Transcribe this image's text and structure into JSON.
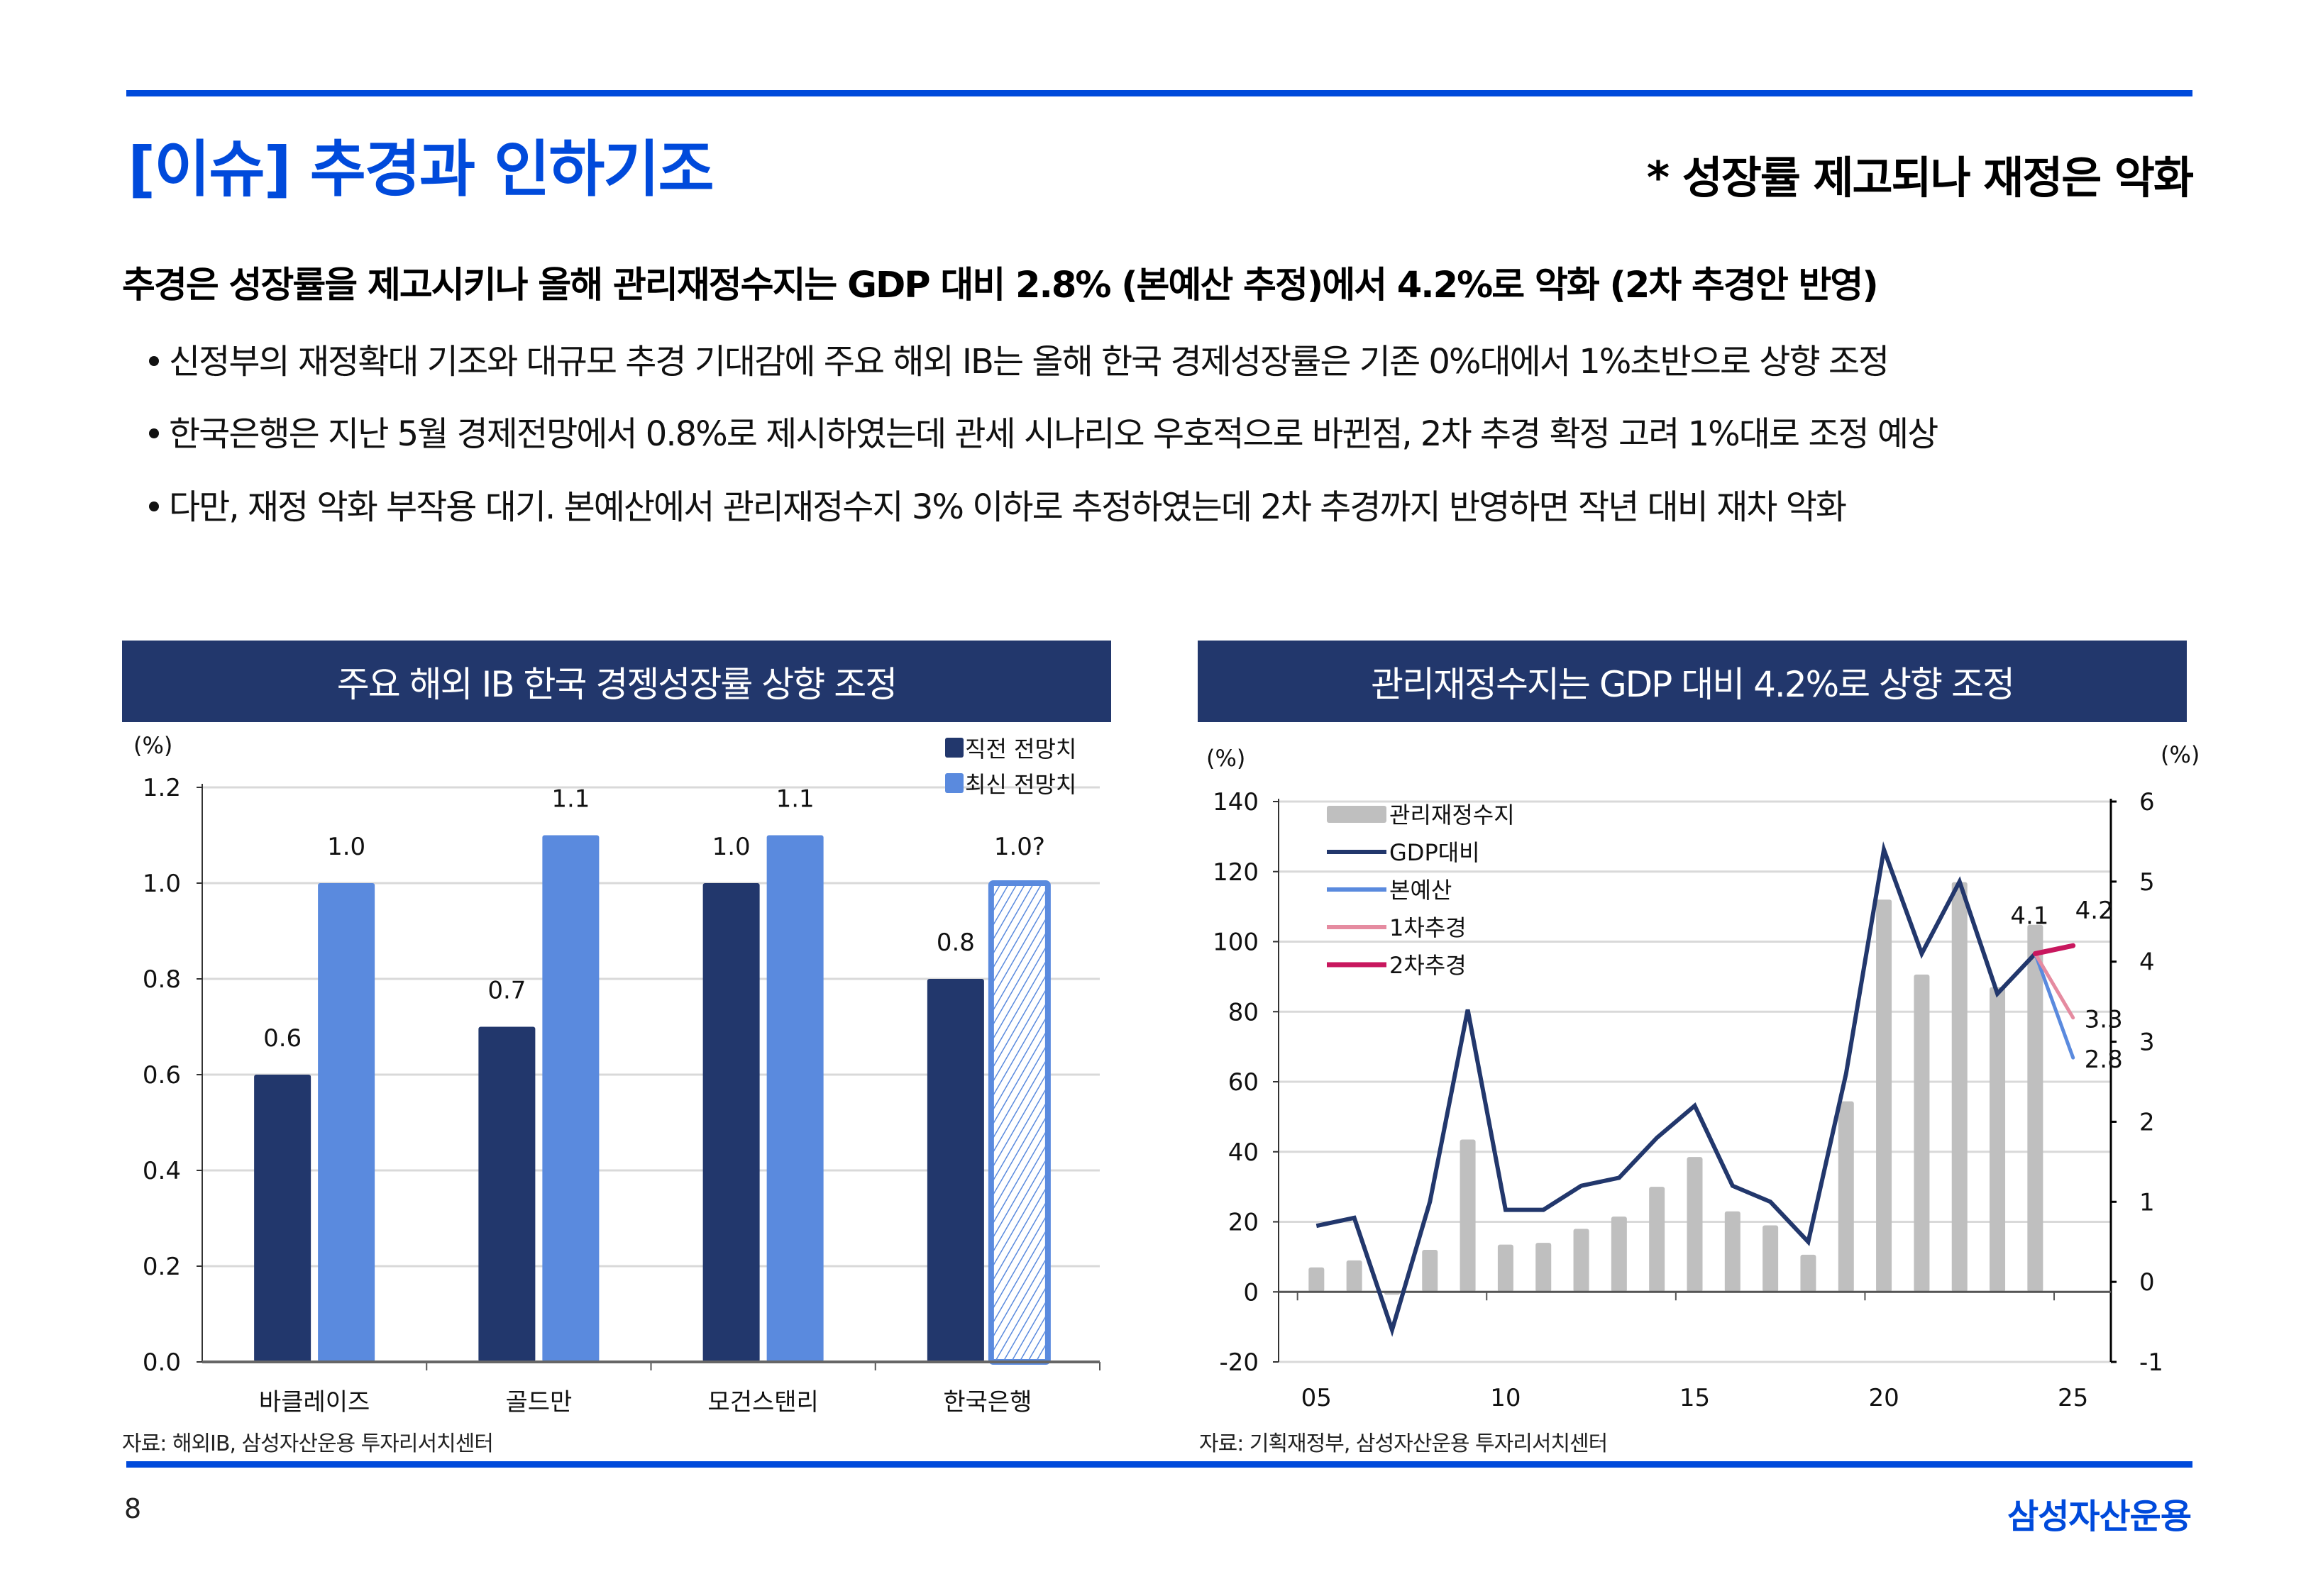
{
  "header": {
    "title": "[이슈] 추경과 인하기조",
    "subtitle": "* 성장률 제고되나 재정은 악화"
  },
  "headline": "추경은 성장률을 제고시키나 올해 관리재정수지는 GDP 대비 2.8% (본예산 추정)에서 4.2%로 악화 (2차 추경안 반영)",
  "bullets": [
    "신정부의 재정확대 기조와 대규모 추경 기대감에 주요 해외 IB는 올해 한국 경제성장률은 기존 0%대에서 1%초반으로 상향 조정",
    "한국은행은 지난 5월 경제전망에서 0.8%로 제시하였는데 관세 시나리오 우호적으로 바뀐점, 2차 추경 확정 고려 1%대로 조정 예상",
    "다만, 재정 악화 부작용 대기. 본예산에서 관리재정수지 3% 이하로 추정하였는데 2차 추경까지 반영하면 작년 대비 재차 악화"
  ],
  "colors": {
    "brand_blue": "#004ADB",
    "header_navy": "#22376C",
    "dark_bar": "#22376C",
    "light_bar": "#5A8ADE",
    "grey_bar": "#BFBFBF",
    "line_gdp": "#22376C",
    "line_budget": "#5A8ADE",
    "line_supp1": "#E58BA0",
    "line_supp2": "#C8175E",
    "grid": "#D9D9D9"
  },
  "chart_data": [
    {
      "type": "bar",
      "title": "주요 해외 IB 한국 경젱성장률 상향 조정",
      "ylabel": "(%)",
      "xlabel": "",
      "ylim": [
        0.0,
        1.2
      ],
      "yticks": [
        "0.0",
        "0.2",
        "0.4",
        "0.6",
        "0.8",
        "1.0",
        "1.2"
      ],
      "grid": true,
      "legend_position": "top-right",
      "categories": [
        "바클레이즈",
        "골드만",
        "모건스탠리",
        "한국은행"
      ],
      "series": [
        {
          "name": "직전 전망치",
          "values": [
            0.6,
            0.7,
            1.0,
            0.8
          ],
          "labels": [
            "0.6",
            "0.7",
            "1.0",
            "0.8"
          ]
        },
        {
          "name": "최신 전망치",
          "values": [
            1.0,
            1.1,
            1.1,
            1.0
          ],
          "labels": [
            "1.0",
            "1.1",
            "1.1",
            "1.0?"
          ],
          "hatched_index": 3
        }
      ],
      "source": "자료: 해외IB, 삼성자산운용 투자리서치센터"
    },
    {
      "type": "bar+line",
      "title": "관리재정수지는 GDP 대비 4.2%로 상향 조정",
      "ylabel_left": "(%)",
      "ylabel_right": "(%)",
      "ylim_left": [
        -20,
        140
      ],
      "ylim_right": [
        -1,
        6
      ],
      "yticks_left": [
        "-20",
        "0",
        "20",
        "40",
        "60",
        "80",
        "100",
        "120",
        "140"
      ],
      "yticks_right": [
        "-1",
        "0",
        "1",
        "2",
        "3",
        "4",
        "5",
        "6"
      ],
      "xlim": [
        2004,
        2026
      ],
      "xticks": [
        "05",
        "10",
        "15",
        "20",
        "25"
      ],
      "xtick_values": [
        2005,
        2010,
        2015,
        2020,
        2025
      ],
      "grid": true,
      "legend_position": "top-left",
      "x": [
        2005,
        2006,
        2007,
        2008,
        2009,
        2010,
        2011,
        2012,
        2013,
        2014,
        2015,
        2016,
        2017,
        2018,
        2019,
        2020,
        2021,
        2022,
        2023,
        2024
      ],
      "series": [
        {
          "name": "관리재정수지",
          "kind": "bar",
          "axis": "left",
          "values": [
            7,
            9,
            0,
            12,
            43.5,
            13.5,
            14,
            18,
            21.5,
            30,
            38.5,
            23,
            19,
            10.6,
            54.4,
            112,
            90.6,
            117,
            87,
            104.8
          ]
        },
        {
          "name": "GDP대비",
          "kind": "line",
          "axis": "right",
          "values": [
            0.7,
            0.8,
            -0.6,
            1.0,
            3.4,
            0.9,
            0.9,
            1.2,
            1.3,
            1.8,
            2.2,
            1.2,
            1.0,
            0.5,
            2.6,
            5.4,
            4.1,
            5.0,
            3.6,
            4.1
          ]
        },
        {
          "name": "본예산",
          "kind": "line",
          "axis": "right",
          "points": [
            [
              2024,
              4.1
            ],
            [
              2025,
              2.8
            ]
          ]
        },
        {
          "name": "1차추경",
          "kind": "line",
          "axis": "right",
          "points": [
            [
              2024,
              4.1
            ],
            [
              2025,
              3.3
            ]
          ]
        },
        {
          "name": "2차추경",
          "kind": "line",
          "axis": "right",
          "points": [
            [
              2024,
              4.1
            ],
            [
              2025,
              4.2
            ]
          ]
        }
      ],
      "annotations": [
        {
          "text": "4.1",
          "x": 2024,
          "y": 4.1
        },
        {
          "text": "4.2",
          "x": 2025,
          "y": 4.2
        },
        {
          "text": "3.3",
          "x": 2025,
          "y": 3.3
        },
        {
          "text": "2.8",
          "x": 2025,
          "y": 2.8
        }
      ],
      "source": "자료: 기획재정부, 삼성자산운용 투자리서치센터"
    }
  ],
  "footer": {
    "page_number": "8",
    "brand": "삼성자산운용"
  }
}
